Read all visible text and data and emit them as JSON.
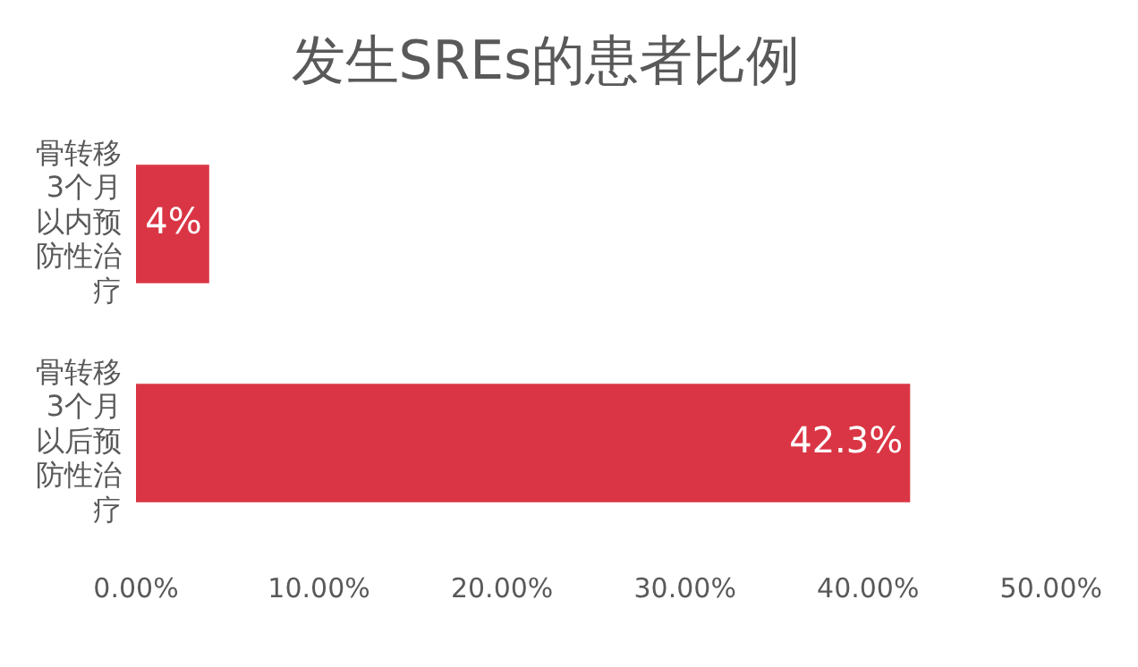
{
  "chart_data": {
    "type": "bar",
    "orientation": "horizontal",
    "title": "发生SREs的患者比例",
    "categories": [
      "骨转移3个月以内预防性治疗",
      "骨转移3个月以后预防性治疗"
    ],
    "values": [
      4,
      42.3
    ],
    "value_labels": [
      "4%",
      "42.3%"
    ],
    "color": "#da3544",
    "xlim": [
      0,
      50
    ],
    "xticks": [
      {
        "value": 0,
        "label": "0.00%"
      },
      {
        "value": 10,
        "label": "10.00%"
      },
      {
        "value": 20,
        "label": "20.00%"
      },
      {
        "value": 30,
        "label": "30.00%"
      },
      {
        "value": 40,
        "label": "40.00%"
      },
      {
        "value": 50,
        "label": "50.00%"
      }
    ],
    "grid": false,
    "legend": false
  }
}
